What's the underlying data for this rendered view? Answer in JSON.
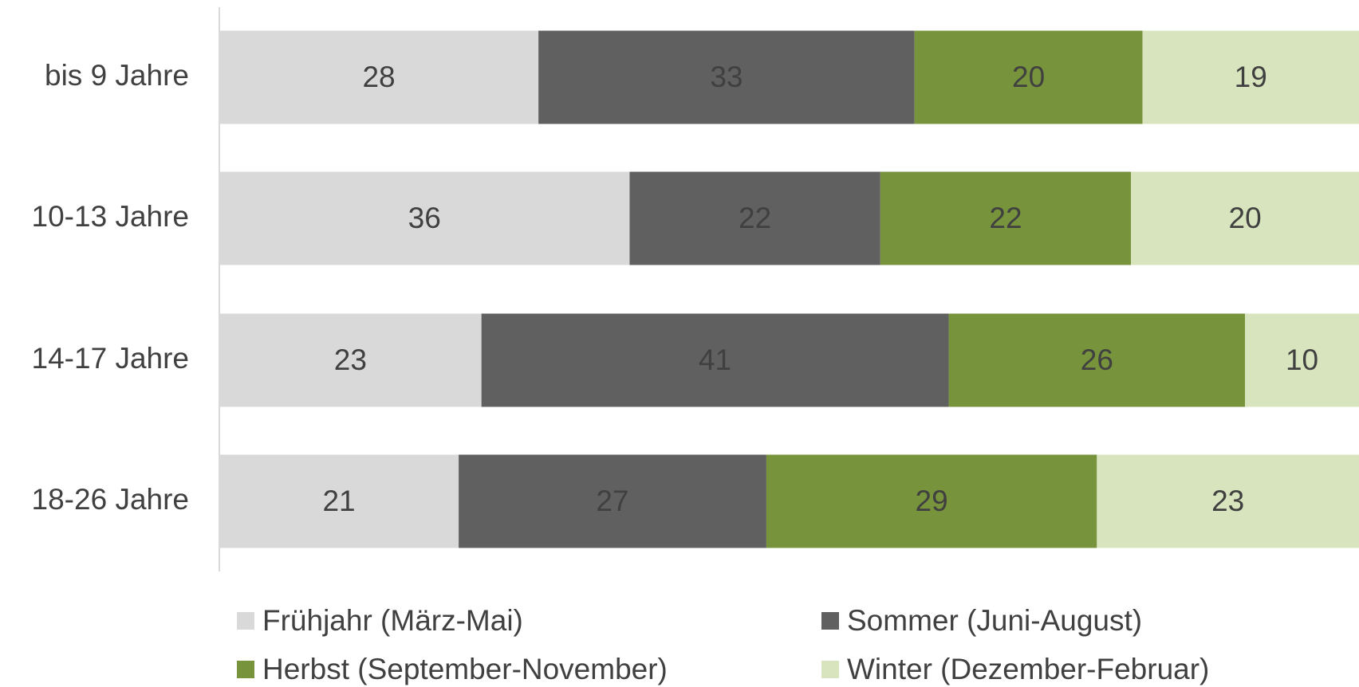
{
  "chart_data": {
    "type": "stacked-bar-horizontal",
    "categories": [
      "bis 9 Jahre",
      "10-13 Jahre",
      "14-17 Jahre",
      "18-26 Jahre"
    ],
    "series": [
      {
        "name": "Frühjahr (März-Mai)",
        "color": "#d9d9d9",
        "label_color": "#404040",
        "values": [
          28,
          36,
          23,
          21
        ]
      },
      {
        "name": "Sommer (Juni-August)",
        "color": "#606060",
        "label_color": "#ffffff",
        "values": [
          33,
          22,
          41,
          27
        ]
      },
      {
        "name": "Herbst (September-November)",
        "color": "#77933c",
        "label_color": "#ffffff",
        "values": [
          20,
          22,
          26,
          29
        ]
      },
      {
        "name": "Winter (Dezember-Februar)",
        "color": "#d7e4bd",
        "label_color": "#404040",
        "values": [
          19,
          20,
          10,
          23
        ]
      }
    ]
  }
}
